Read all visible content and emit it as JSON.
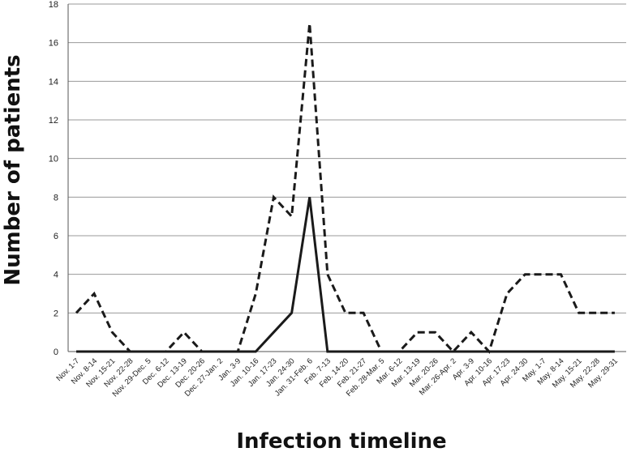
{
  "chart_data": {
    "type": "line",
    "title": "",
    "xlabel": "Infection timeline",
    "ylabel": "Number of patients",
    "ylim": [
      0,
      18
    ],
    "yticks": [
      "0",
      "2",
      "4",
      "6",
      "8",
      "10",
      "12",
      "14",
      "16",
      "18"
    ],
    "grid": "horizontal",
    "legend": "none",
    "categories": [
      "Nov. 1-7",
      "Nov. 8-14",
      "Nov. 15-21",
      "Nov. 22-28",
      "Nov. 29-Dec. 5",
      "Dec. 6-12",
      "Dec. 13-19",
      "Dec. 20-26",
      "Dec. 27-Jan. 2",
      "Jan. 3-9",
      "Jan. 10-16",
      "Jan. 17-23",
      "Jan. 24-30",
      "Jan. 31-Feb. 6",
      "Feb. 7-13",
      "Feb. 14-20",
      "Feb. 21-27",
      "Feb. 28-Mar. 5",
      "Mar. 6-12",
      "Mar. 13-19",
      "Mar. 20-26",
      "Mar. 26-Apr. 2",
      "Apr. 3-9",
      "Apr. 10-16",
      "Apr. 17-23",
      "Apr. 24-30",
      "May. 1-7",
      "May. 8-14",
      "May. 15-21",
      "May. 22-28",
      "May. 29-31"
    ],
    "series": [
      {
        "style": "dashed",
        "color": "#1a1a1a",
        "values": [
          2,
          3,
          1,
          0,
          0,
          0,
          1,
          0,
          0,
          0,
          3,
          8,
          7,
          17,
          4,
          2,
          2,
          0,
          0,
          1,
          1,
          0,
          1,
          0,
          3,
          4,
          4,
          4,
          2,
          2,
          2
        ]
      },
      {
        "style": "solid",
        "color": "#1a1a1a",
        "values": [
          0,
          0,
          0,
          0,
          0,
          0,
          0,
          0,
          0,
          0,
          0,
          1,
          2,
          8,
          0,
          0,
          0,
          0,
          0,
          0,
          0,
          0,
          0,
          0,
          0,
          0,
          0,
          0,
          0,
          0,
          0
        ]
      }
    ]
  }
}
